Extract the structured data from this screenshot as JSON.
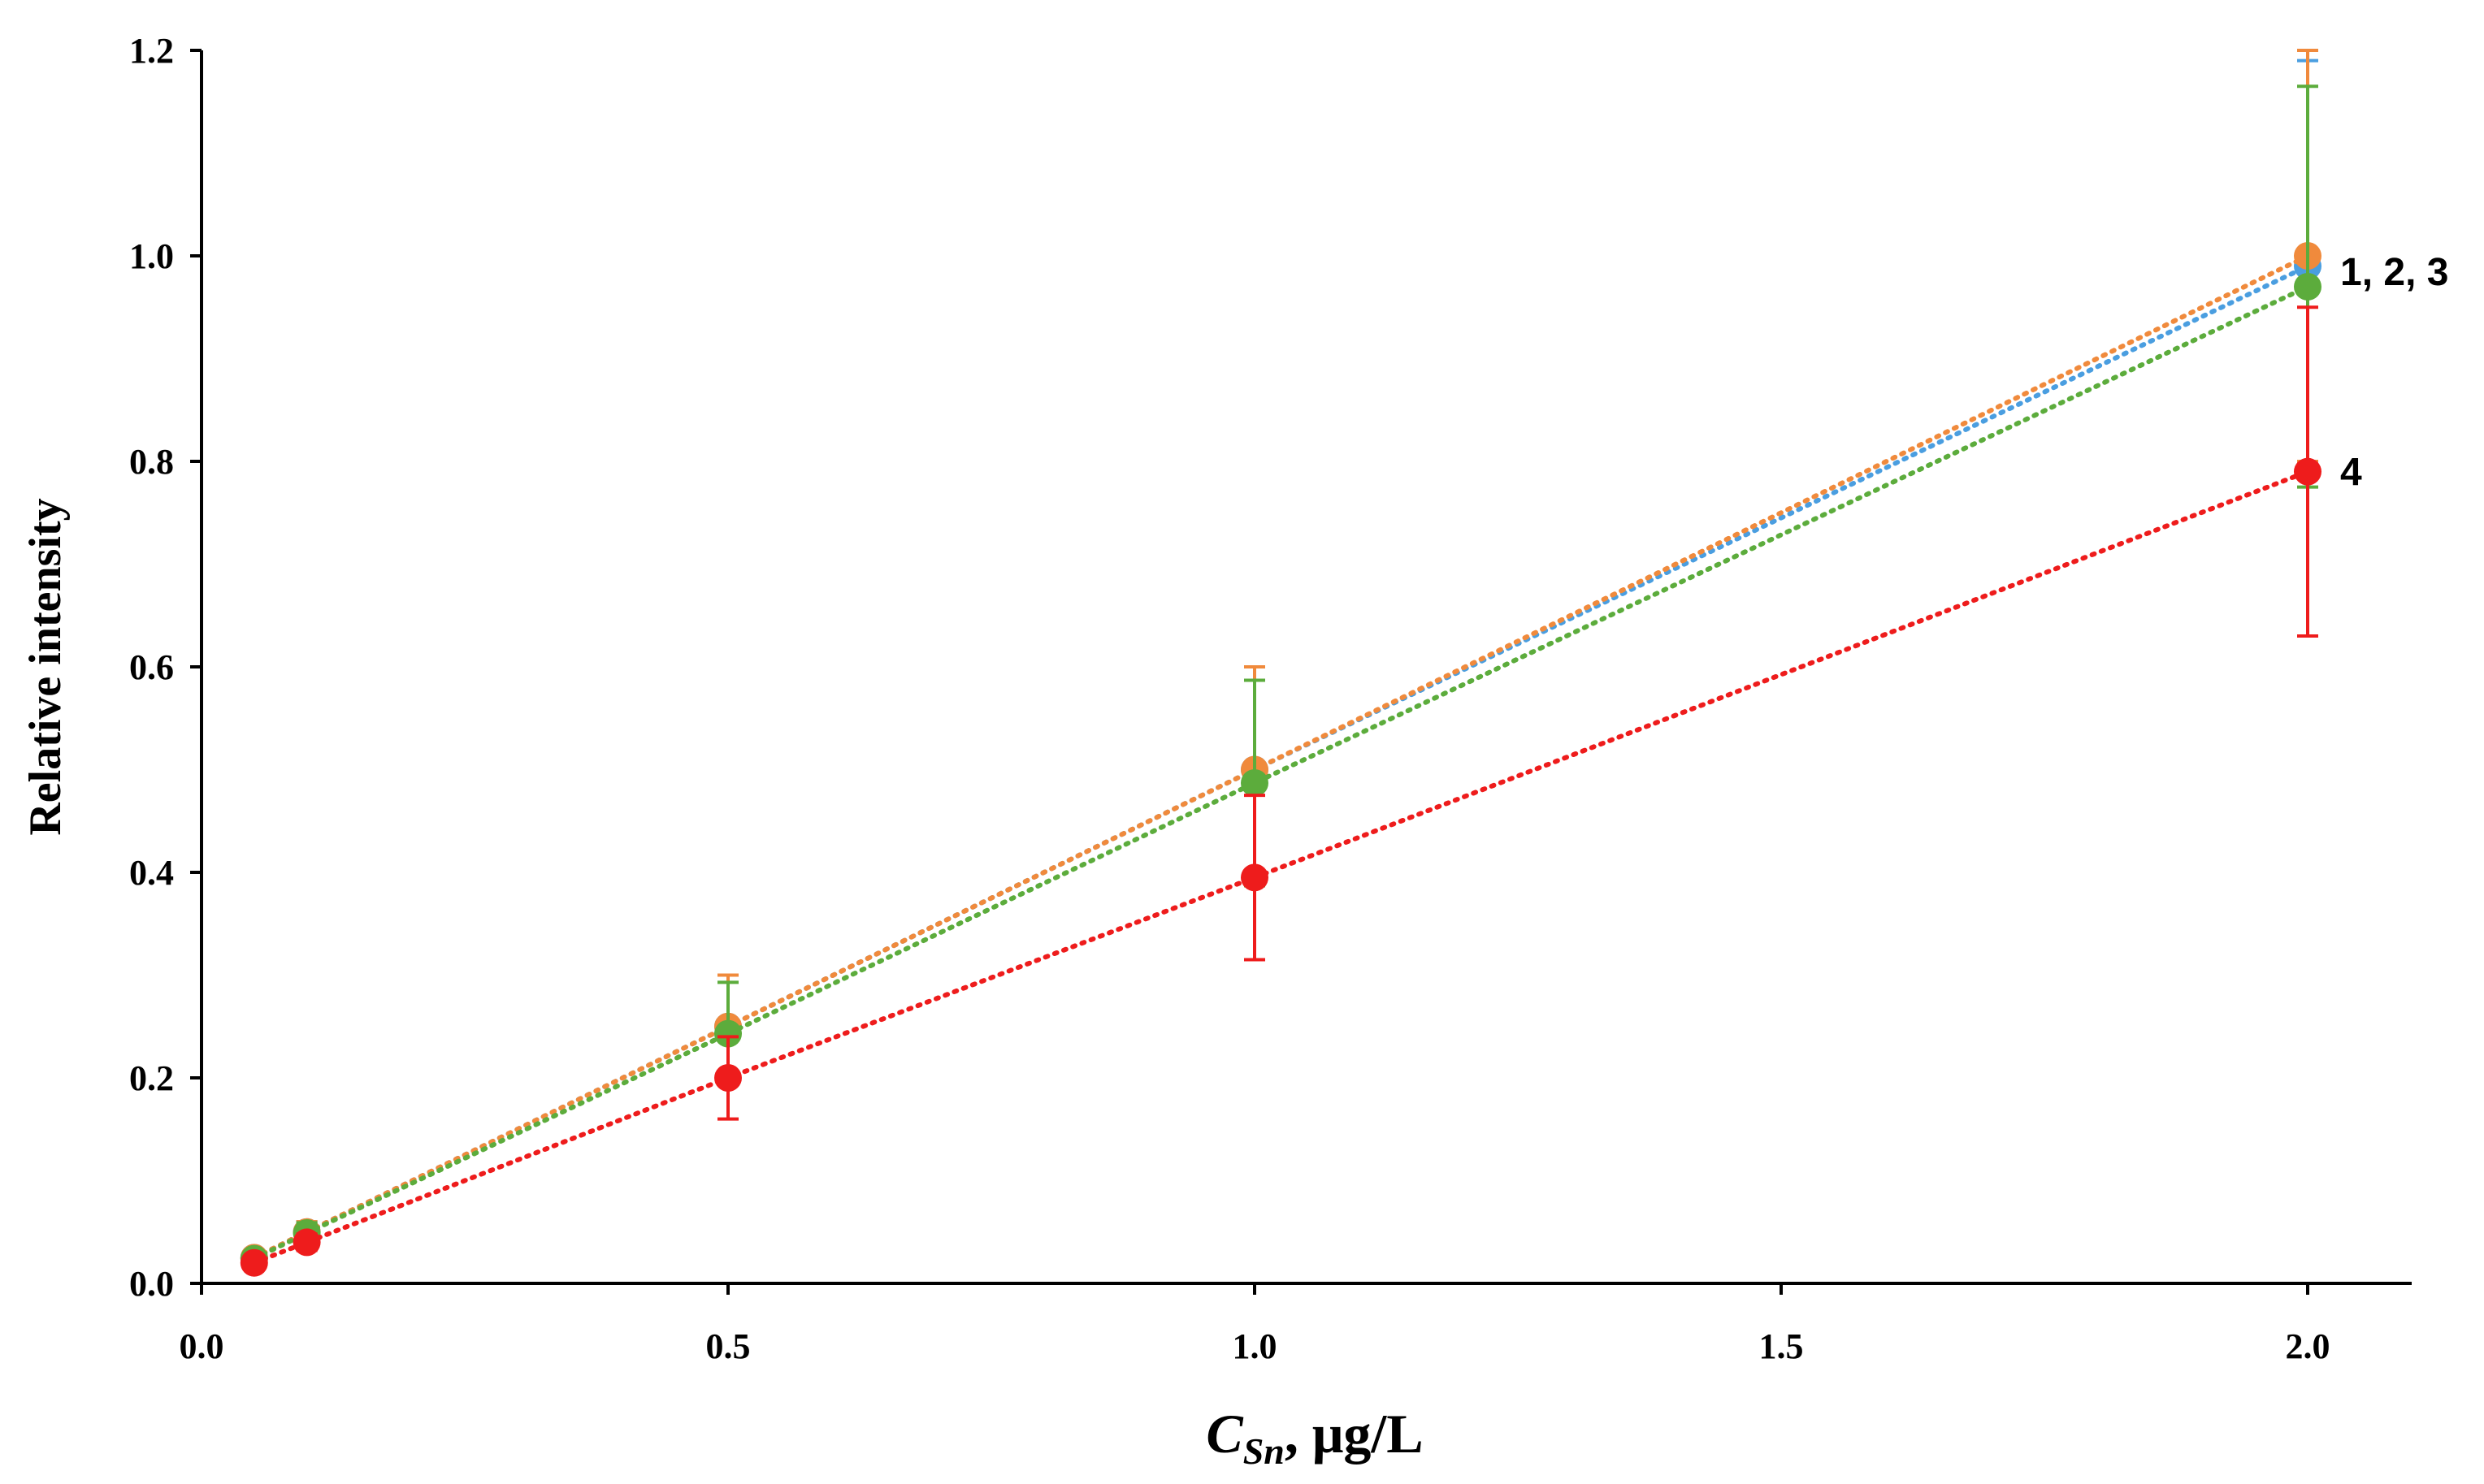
{
  "chart_data": {
    "type": "scatter",
    "title": "",
    "xlabel_main": "C",
    "xlabel_sub": "Sn",
    "xlabel_rest": ", μg/L",
    "ylabel": "Relative intensity",
    "xlim": [
      0,
      2.2
    ],
    "ylim": [
      0,
      1.2
    ],
    "x_ticks": [
      0.0,
      0.5,
      1.0,
      1.5,
      2.0
    ],
    "x_tick_labels": [
      "0.0",
      "0.5",
      "1.0",
      "1.5",
      "2.0"
    ],
    "y_ticks": [
      0.0,
      0.2,
      0.4,
      0.6,
      0.8,
      1.0,
      1.2
    ],
    "y_tick_labels": [
      "0.0",
      "0.2",
      "0.4",
      "0.6",
      "0.8",
      "1.0",
      "1.2"
    ],
    "trendline_style": "dotted",
    "series": [
      {
        "name": "1",
        "color": "#4a9ee0",
        "x": [
          0.05,
          0.1,
          0.5,
          1.0,
          2.0
        ],
        "y": [
          0.025,
          0.05,
          0.25,
          0.5,
          0.99
        ],
        "err": [
          0.005,
          0.01,
          0.05,
          0.1,
          0.2
        ]
      },
      {
        "name": "2",
        "color": "#f08a3c",
        "x": [
          0.05,
          0.1,
          0.5,
          1.0,
          2.0
        ],
        "y": [
          0.025,
          0.05,
          0.25,
          0.5,
          1.0
        ],
        "err": [
          0.005,
          0.01,
          0.05,
          0.1,
          0.2
        ]
      },
      {
        "name": "3",
        "color": "#5cac3c",
        "x": [
          0.05,
          0.1,
          0.5,
          1.0,
          2.0
        ],
        "y": [
          0.024,
          0.049,
          0.243,
          0.487,
          0.97
        ],
        "err": [
          0.005,
          0.01,
          0.05,
          0.1,
          0.195
        ]
      },
      {
        "name": "4",
        "color": "#ee1c1c",
        "x": [
          0.05,
          0.1,
          0.5,
          1.0,
          2.0
        ],
        "y": [
          0.02,
          0.04,
          0.2,
          0.395,
          0.79
        ],
        "err": [
          0.004,
          0.008,
          0.04,
          0.08,
          0.16
        ]
      }
    ],
    "annotations": [
      {
        "text": "1, 2, 3",
        "x": 2.0,
        "y": 0.985
      },
      {
        "text": "4",
        "x": 2.0,
        "y": 0.79
      }
    ]
  }
}
